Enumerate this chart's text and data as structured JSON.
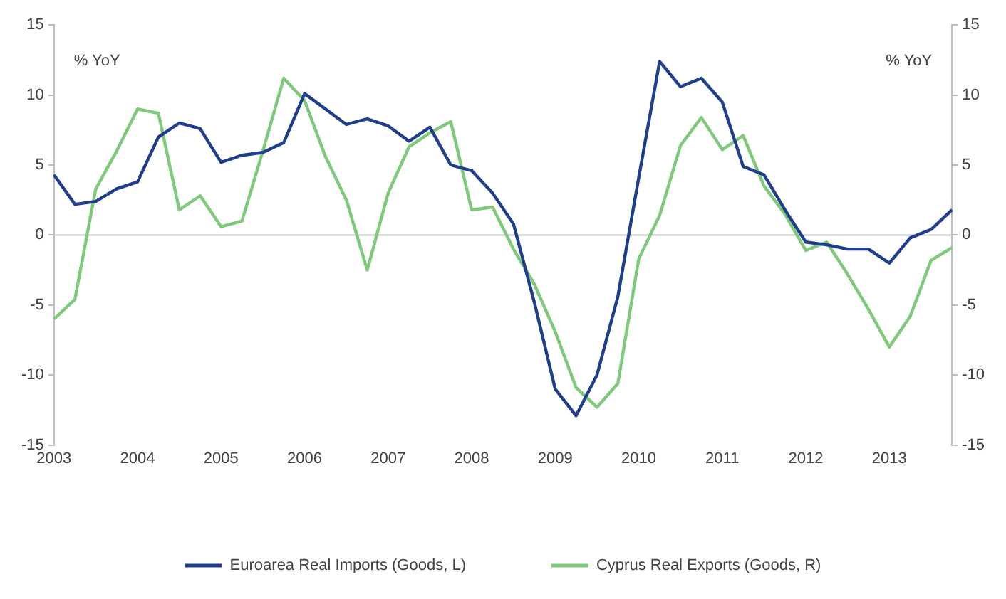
{
  "chart_data": {
    "type": "line",
    "ylabel": "% YoY",
    "y2label": "% YoY",
    "categories": [
      "2003",
      null,
      null,
      null,
      "2004",
      null,
      null,
      null,
      "2005",
      null,
      null,
      null,
      "2006",
      null,
      null,
      null,
      "2007",
      null,
      null,
      null,
      "2008",
      null,
      null,
      null,
      "2009",
      null,
      null,
      null,
      "2010",
      null,
      null,
      null,
      "2011",
      null,
      null,
      null,
      "2012",
      null,
      null,
      null,
      "2013",
      null,
      null,
      null
    ],
    "series": [
      {
        "name": "Euroarea Real Imports (Goods, L)",
        "color": "#1f3e8c",
        "values": [
          4.3,
          2.2,
          2.4,
          3.3,
          3.8,
          7.0,
          8.0,
          7.6,
          5.2,
          5.7,
          5.9,
          6.6,
          10.1,
          9.0,
          7.9,
          8.3,
          7.8,
          6.7,
          7.7,
          5.0,
          4.6,
          3.0,
          0.8,
          -4.8,
          -11.0,
          -12.9,
          -10.0,
          -4.4,
          4.1,
          12.4,
          10.6,
          11.2,
          9.5,
          4.9,
          4.3,
          1.8,
          -0.5,
          -0.7,
          -1.0,
          -1.0,
          -2.0,
          -0.2,
          0.4,
          1.8
        ]
      },
      {
        "name": "Cyprus Real Exports (Goods, R)",
        "color": "#7fc97a",
        "axis": "y2",
        "values": [
          -6.0,
          -4.6,
          3.3,
          6.0,
          9.0,
          8.7,
          1.8,
          2.8,
          0.6,
          1.0,
          6.0,
          11.2,
          9.6,
          5.6,
          2.5,
          -2.5,
          3.0,
          6.3,
          7.3,
          8.1,
          1.8,
          2.0,
          -1.0,
          -3.5,
          -6.9,
          -10.9,
          -12.3,
          -10.6,
          -1.7,
          1.4,
          6.4,
          8.4,
          6.1,
          7.1,
          3.5,
          1.5,
          -1.1,
          -0.5,
          -2.8,
          -5.3,
          -8.0,
          -5.8,
          -1.8,
          -0.9
        ]
      }
    ],
    "ylim": [
      -15,
      15
    ],
    "yticks": [
      -15,
      -10,
      -5,
      0,
      5,
      10,
      15
    ],
    "y2lim": [
      -15,
      15
    ],
    "y2ticks": [
      -15,
      -10,
      -5,
      0,
      5,
      10,
      15
    ],
    "ref_lines": [
      {
        "axis": "y",
        "value": 0,
        "color": "#c8c8c8"
      }
    ],
    "grid": false,
    "legend": "bottom",
    "marker": "none",
    "line_style": "solid"
  }
}
